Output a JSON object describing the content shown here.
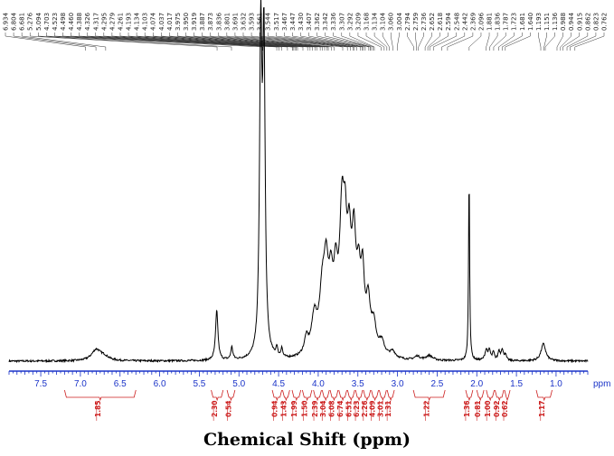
{
  "chart_data": {
    "type": "line",
    "xlabel": "Chemical Shift (ppm)",
    "unit_label": "ppm",
    "xlim": [
      7.9,
      0.6
    ],
    "axis_reversed": true,
    "x_ticks": [
      7.5,
      7.0,
      6.5,
      6.0,
      5.5,
      5.0,
      4.5,
      4.0,
      3.5,
      3.0,
      2.5,
      2.0,
      1.5,
      1.0
    ],
    "x_tick_labels": [
      "7.5",
      "7.0",
      "6.5",
      "6.0",
      "5.5",
      "5.0",
      "4.5",
      "4.0",
      "3.5",
      "3.0",
      "2.5",
      "2.0",
      "1.5",
      "1.0"
    ],
    "peak_labels": [
      "6.934",
      "6.804",
      "6.681",
      "5.276",
      "5.094",
      "4.703",
      "4.523",
      "4.498",
      "4.460",
      "4.388",
      "4.326",
      "4.317",
      "4.295",
      "4.279",
      "4.261",
      "4.193",
      "4.134",
      "4.103",
      "4.074",
      "4.037",
      "4.017",
      "3.975",
      "3.950",
      "3.919",
      "3.887",
      "3.873",
      "3.836",
      "3.801",
      "3.691",
      "3.632",
      "3.593",
      "3.561",
      "3.544",
      "3.517",
      "3.467",
      "3.447",
      "3.430",
      "3.407",
      "3.362",
      "3.342",
      "3.336",
      "3.307",
      "3.292",
      "3.209",
      "3.168",
      "3.134",
      "3.104",
      "3.060",
      "3.004",
      "2.794",
      "2.759",
      "2.736",
      "2.652",
      "2.618",
      "2.594",
      "2.548",
      "2.442",
      "2.369",
      "2.096",
      "1.881",
      "1.836",
      "1.787",
      "1.723",
      "1.681",
      "1.640",
      "1.193",
      "1.151",
      "1.136",
      "0.988",
      "0.944",
      "0.915",
      "0.862",
      "0.823",
      "0.762"
    ],
    "integrals": [
      {
        "label": "1.85",
        "from": 7.2,
        "to": 6.3
      },
      {
        "label": "2.30",
        "from": 5.35,
        "to": 5.2
      },
      {
        "label": "0.54",
        "from": 5.15,
        "to": 5.05
      },
      {
        "label": "0.94",
        "from": 4.58,
        "to": 4.46
      },
      {
        "label": "1.43",
        "from": 4.45,
        "to": 4.36
      },
      {
        "label": "1.99",
        "from": 4.33,
        "to": 4.22
      },
      {
        "label": "1.50",
        "from": 4.2,
        "to": 4.08
      },
      {
        "label": "2.39",
        "from": 4.06,
        "to": 3.96
      },
      {
        "label": "3.04",
        "from": 3.95,
        "to": 3.86
      },
      {
        "label": "6.08",
        "from": 3.85,
        "to": 3.75
      },
      {
        "label": "6.74",
        "from": 3.74,
        "to": 3.64
      },
      {
        "label": "6.51",
        "from": 3.63,
        "to": 3.54
      },
      {
        "label": "6.23",
        "from": 3.53,
        "to": 3.44
      },
      {
        "label": "2.26",
        "from": 3.43,
        "to": 3.34
      },
      {
        "label": "4.09",
        "from": 3.33,
        "to": 3.24
      },
      {
        "label": "3.01",
        "from": 3.23,
        "to": 3.14
      },
      {
        "label": "1.31",
        "from": 3.13,
        "to": 3.04
      },
      {
        "label": "1.22",
        "from": 2.8,
        "to": 2.4
      },
      {
        "label": "1.36",
        "from": 2.14,
        "to": 2.05
      },
      {
        "label": "0.81",
        "from": 2.0,
        "to": 1.91
      },
      {
        "label": "1.00",
        "from": 1.88,
        "to": 1.78
      },
      {
        "label": "0.92",
        "from": 1.77,
        "to": 1.66
      },
      {
        "label": "0.62",
        "from": 1.65,
        "to": 1.58
      },
      {
        "label": "1.17",
        "from": 1.25,
        "to": 1.05
      }
    ],
    "series": [
      {
        "peaks": [
          {
            "ppm": 6.8,
            "height": 0.035,
            "width": 0.07
          },
          {
            "ppm": 6.7,
            "height": 0.012,
            "width": 0.07
          },
          {
            "ppm": 5.28,
            "height": 0.16,
            "width": 0.018
          },
          {
            "ppm": 5.09,
            "height": 0.04,
            "width": 0.015
          },
          {
            "ppm": 4.725,
            "height": 1.0,
            "width": 0.018
          },
          {
            "ppm": 4.685,
            "height": 0.98,
            "width": 0.018
          },
          {
            "ppm": 4.523,
            "height": 0.03,
            "width": 0.012
          },
          {
            "ppm": 4.46,
            "height": 0.03,
            "width": 0.012
          },
          {
            "ppm": 4.15,
            "height": 0.05,
            "width": 0.03
          },
          {
            "ppm": 4.05,
            "height": 0.11,
            "width": 0.04
          },
          {
            "ppm": 3.95,
            "height": 0.16,
            "width": 0.04
          },
          {
            "ppm": 3.9,
            "height": 0.22,
            "width": 0.035
          },
          {
            "ppm": 3.84,
            "height": 0.16,
            "width": 0.03
          },
          {
            "ppm": 3.78,
            "height": 0.18,
            "width": 0.03
          },
          {
            "ppm": 3.7,
            "height": 0.38,
            "width": 0.035
          },
          {
            "ppm": 3.66,
            "height": 0.22,
            "width": 0.025
          },
          {
            "ppm": 3.61,
            "height": 0.26,
            "width": 0.03
          },
          {
            "ppm": 3.55,
            "height": 0.29,
            "width": 0.03
          },
          {
            "ppm": 3.49,
            "height": 0.18,
            "width": 0.03
          },
          {
            "ppm": 3.44,
            "height": 0.2,
            "width": 0.025
          },
          {
            "ppm": 3.37,
            "height": 0.14,
            "width": 0.03
          },
          {
            "ppm": 3.3,
            "height": 0.08,
            "width": 0.035
          },
          {
            "ppm": 3.2,
            "height": 0.04,
            "width": 0.04
          },
          {
            "ppm": 3.06,
            "height": 0.02,
            "width": 0.04
          },
          {
            "ppm": 2.75,
            "height": 0.012,
            "width": 0.04
          },
          {
            "ppm": 2.6,
            "height": 0.015,
            "width": 0.05
          },
          {
            "ppm": 2.097,
            "height": 0.6,
            "width": 0.008
          },
          {
            "ppm": 1.88,
            "height": 0.035,
            "width": 0.02
          },
          {
            "ppm": 1.84,
            "height": 0.03,
            "width": 0.015
          },
          {
            "ppm": 1.79,
            "height": 0.025,
            "width": 0.015
          },
          {
            "ppm": 1.72,
            "height": 0.03,
            "width": 0.015
          },
          {
            "ppm": 1.68,
            "height": 0.035,
            "width": 0.015
          },
          {
            "ppm": 1.64,
            "height": 0.02,
            "width": 0.015
          },
          {
            "ppm": 1.16,
            "height": 0.055,
            "width": 0.035
          }
        ]
      }
    ]
  },
  "colors": {
    "spectrum": "#000000",
    "axis": "#1a33c8",
    "integral": "#cc1f1f",
    "peak_label": "#222222"
  }
}
